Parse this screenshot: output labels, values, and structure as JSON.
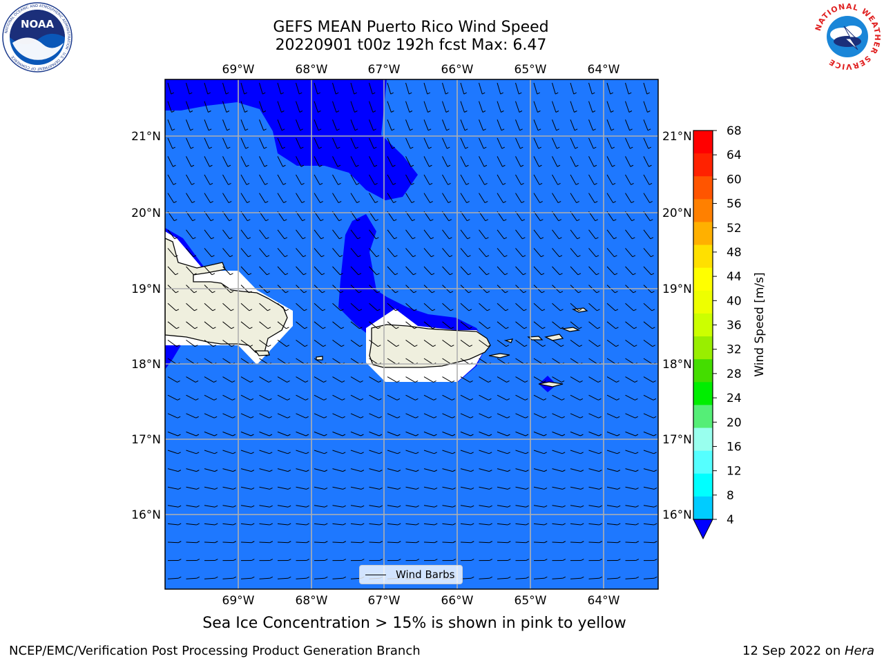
{
  "header": {
    "title_line1": "GEFS MEAN Puerto Rico Wind Speed",
    "title_line2": "20220901 t00z 192h fcst   Max: 6.47"
  },
  "logos": {
    "left": "NOAA",
    "left_ring_text": "NATIONAL OCEANIC AND ATMOSPHERIC ADMINISTRATION · U.S. DEPARTMENT OF COMMERCE",
    "right_ring_text": "NATIONAL WEATHER SERVICE"
  },
  "map": {
    "lon_labels": [
      "69°W",
      "68°W",
      "67°W",
      "66°W",
      "65°W",
      "64°W"
    ],
    "lat_labels": [
      "21°N",
      "20°N",
      "19°N",
      "18°N",
      "17°N",
      "16°N"
    ],
    "grid": true,
    "ocean_color": "#1e78ff",
    "low_wind_color": "#0000ff",
    "land_color": "#efefde"
  },
  "legend": {
    "label": "Wind Barbs"
  },
  "colorbar": {
    "label": "Wind Speed [m/s]",
    "ticks": [
      "68",
      "64",
      "60",
      "56",
      "52",
      "48",
      "44",
      "40",
      "36",
      "32",
      "28",
      "24",
      "20",
      "16",
      "12",
      "8",
      "4"
    ],
    "colors": [
      "#ff0000",
      "#ff2200",
      "#ff5500",
      "#ff8000",
      "#ffb000",
      "#ffe000",
      "#ffff00",
      "#eeff00",
      "#ccff00",
      "#99ee00",
      "#44dd00",
      "#00ee00",
      "#55ee77",
      "#99ffee",
      "#55ffff",
      "#00ffff",
      "#00ccff",
      "#1e78ff"
    ],
    "extend_color": "#0000ff"
  },
  "footer": {
    "subtitle": "Sea Ice Concentration > 15% is shown in pink to yellow",
    "left": "NCEP/EMC/Verification Post Processing Product Generation Branch",
    "right_date": "12 Sep 2022 on ",
    "right_machine": "Hera"
  }
}
